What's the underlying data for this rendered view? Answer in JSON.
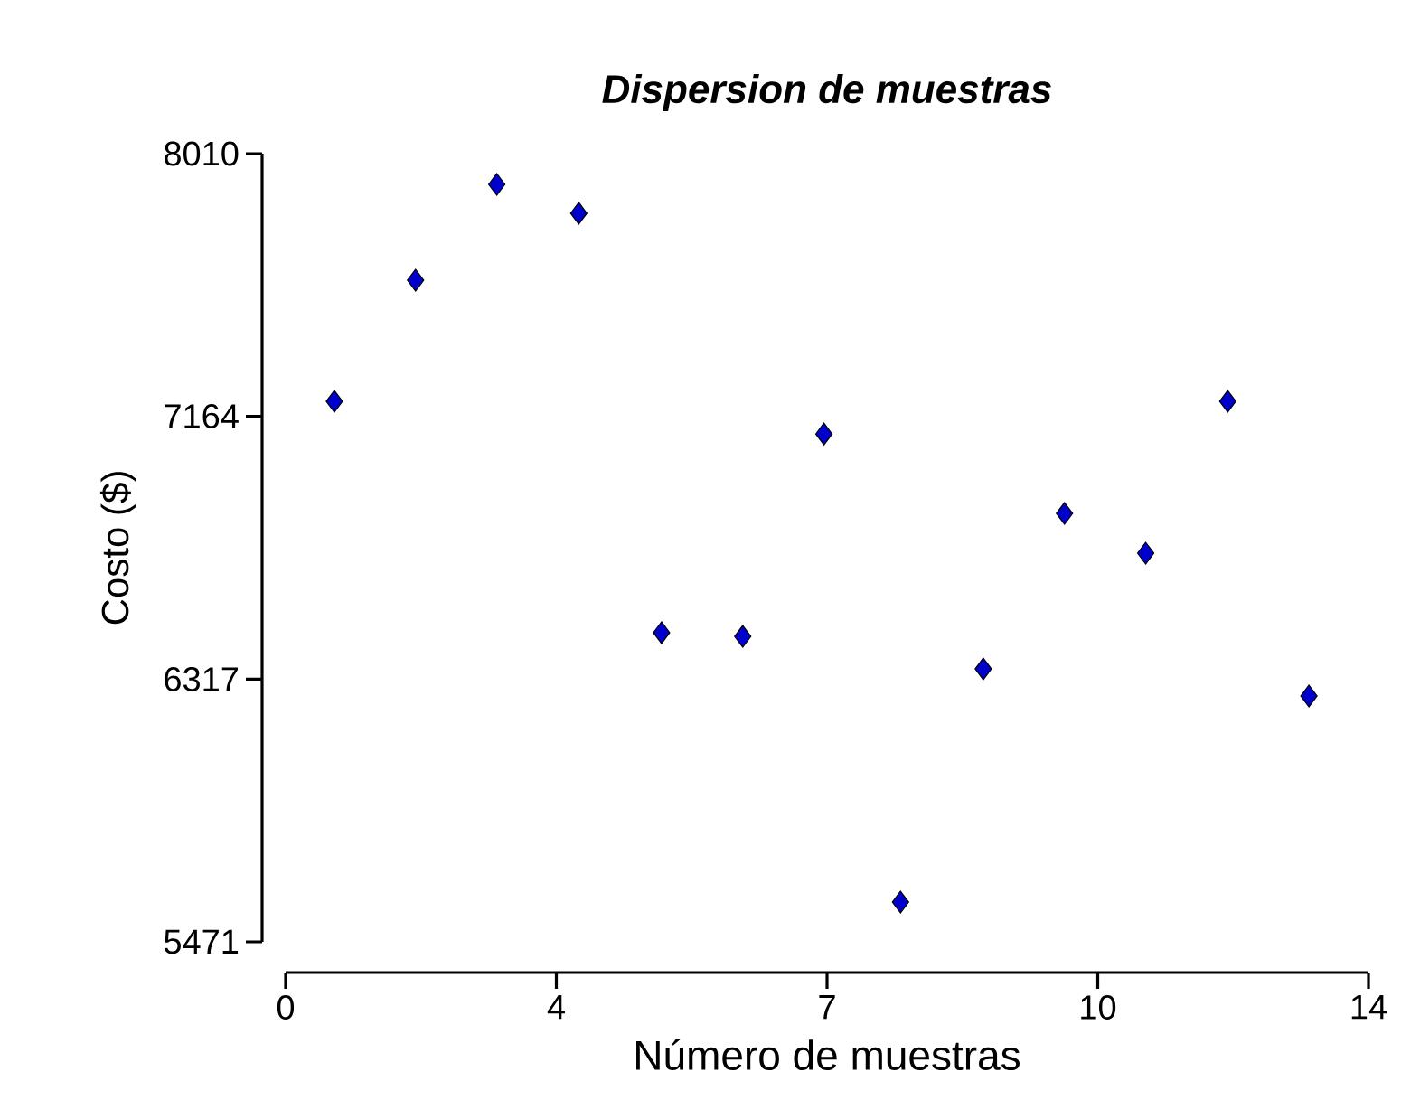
{
  "chart_data": {
    "type": "scatter",
    "title": "Dispersion de muestras",
    "xlabel": "Número de muestras",
    "ylabel": "Costo ($)",
    "x": [
      0.63,
      1.68,
      2.73,
      3.79,
      4.86,
      5.91,
      6.96,
      7.95,
      9.02,
      10.07,
      11.12,
      12.18,
      13.23
    ],
    "series": [
      {
        "color": "#0000cc",
        "values": [
          7212,
          7602,
          7911,
          7818,
          6467,
          6455,
          7107,
          5599,
          6350,
          6851,
          6723,
          7212,
          6263
        ]
      }
    ],
    "xlim": [
      0,
      14
    ],
    "xticks": [
      0,
      {
        "value": 3.5,
        "label": "4"
      },
      7,
      {
        "value": 10.5,
        "label": "10"
      },
      14
    ],
    "ylim": [
      5471,
      8010
    ],
    "yticks": [
      5471,
      6317,
      7164,
      8010
    ],
    "marker": "diamond",
    "grid": false
  }
}
